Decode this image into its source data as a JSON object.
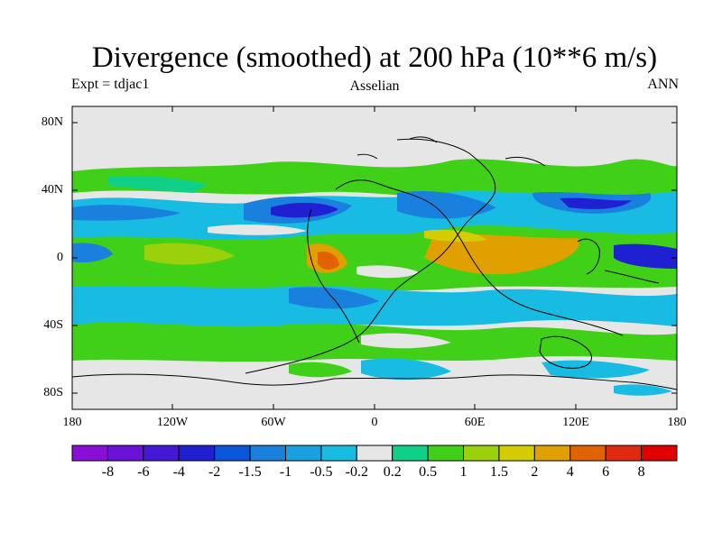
{
  "title": "Divergence (smoothed) at 200 hPa (10**6 m/s)",
  "subtitle_left": "Expt = tdjac1",
  "subtitle_center": "Asselian",
  "subtitle_right": "ANN",
  "y_axis_labels": [
    "80N",
    "40N",
    "0",
    "40S",
    "80S"
  ],
  "x_axis_labels": [
    "180",
    "120W",
    "60W",
    "0",
    "60E",
    "120E",
    "180"
  ],
  "colorbar": {
    "labels": [
      "-8",
      "-6",
      "-4",
      "-2",
      "-1.5",
      "-1",
      "-0.5",
      "-0.2",
      "0.2",
      "0.5",
      "1",
      "1.5",
      "2",
      "4",
      "6",
      "8"
    ],
    "colors": [
      "#8a0fd6",
      "#6a12d8",
      "#4518d8",
      "#1e20d2",
      "#0a56d8",
      "#1a80de",
      "#1aa0e0",
      "#18bce2",
      "#e6e6e6",
      "#10d088",
      "#40d018",
      "#9ad00c",
      "#d4cc00",
      "#e0a000",
      "#e06200",
      "#e02a10",
      "#e00000"
    ]
  },
  "colors": {
    "background": "#ffffff",
    "plot_background": "#e6e6e6",
    "coastline": "#000000"
  }
}
